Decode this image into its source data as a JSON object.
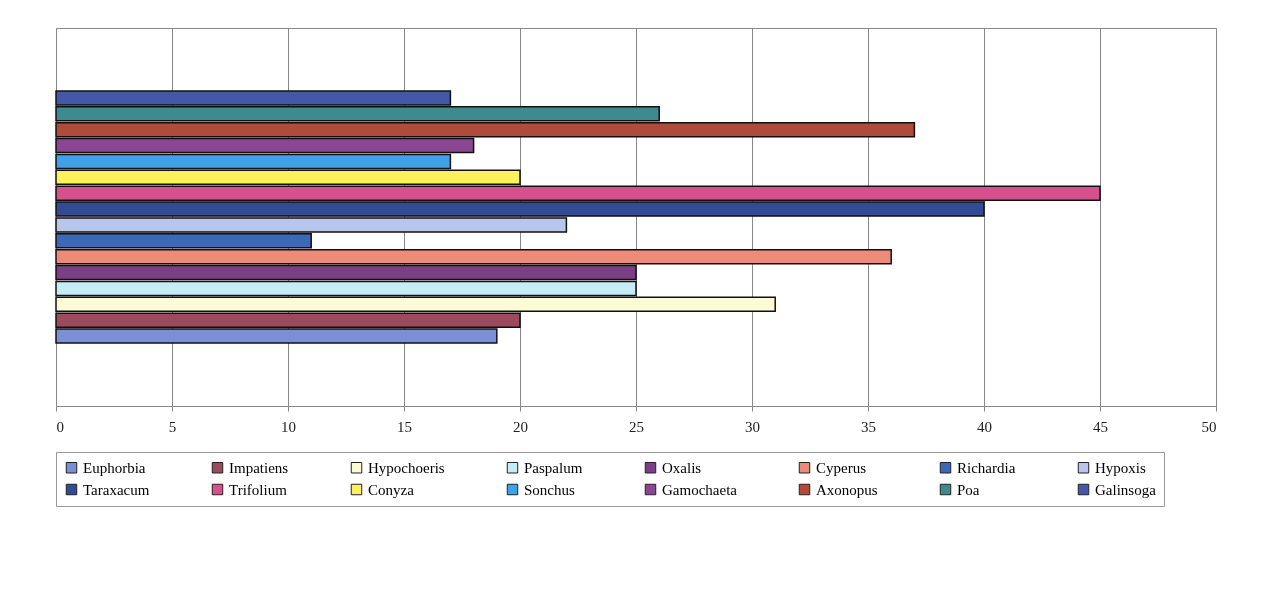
{
  "chart_data": {
    "type": "bar",
    "orientation": "horizontal",
    "categories": [
      null
    ],
    "xlim": [
      0,
      50
    ],
    "xticks": [
      0,
      5,
      10,
      15,
      20,
      25,
      30,
      35,
      40,
      45,
      50
    ],
    "grid": "x",
    "legend": "bottom",
    "tick_labels": "x",
    "series": [
      {
        "name": "Euphorbia",
        "color": "#7b8fd6",
        "values": [
          19
        ]
      },
      {
        "name": "Impatiens",
        "color": "#9c4a5e",
        "values": [
          20
        ]
      },
      {
        "name": "Hypochoeris",
        "color": "#fdfbd6",
        "values": [
          31
        ]
      },
      {
        "name": "Paspalum",
        "color": "#c6ecf6",
        "values": [
          25
        ]
      },
      {
        "name": "Oxalis",
        "color": "#7a3f84",
        "values": [
          25
        ]
      },
      {
        "name": "Cyperus",
        "color": "#ee8a7a",
        "values": [
          36
        ]
      },
      {
        "name": "Richardia",
        "color": "#3c68b8",
        "values": [
          11
        ]
      },
      {
        "name": "Hypoxis",
        "color": "#b9c6ec",
        "values": [
          22
        ]
      },
      {
        "name": "Taraxacum",
        "color": "#334a94",
        "values": [
          40
        ]
      },
      {
        "name": "Trifolium",
        "color": "#d6508e",
        "values": [
          45
        ]
      },
      {
        "name": "Conyza",
        "color": "#fbf25a",
        "values": [
          20
        ]
      },
      {
        "name": "Sonchus",
        "color": "#3fa2e6",
        "values": [
          17
        ]
      },
      {
        "name": "Gamochaeta",
        "color": "#8a4690",
        "values": [
          18
        ]
      },
      {
        "name": "Axonopus",
        "color": "#b04a3a",
        "values": [
          37
        ]
      },
      {
        "name": "Poa",
        "color": "#3e8a8e",
        "values": [
          26
        ]
      },
      {
        "name": "Galinsoga",
        "color": "#4458a8",
        "values": [
          17
        ]
      }
    ]
  }
}
